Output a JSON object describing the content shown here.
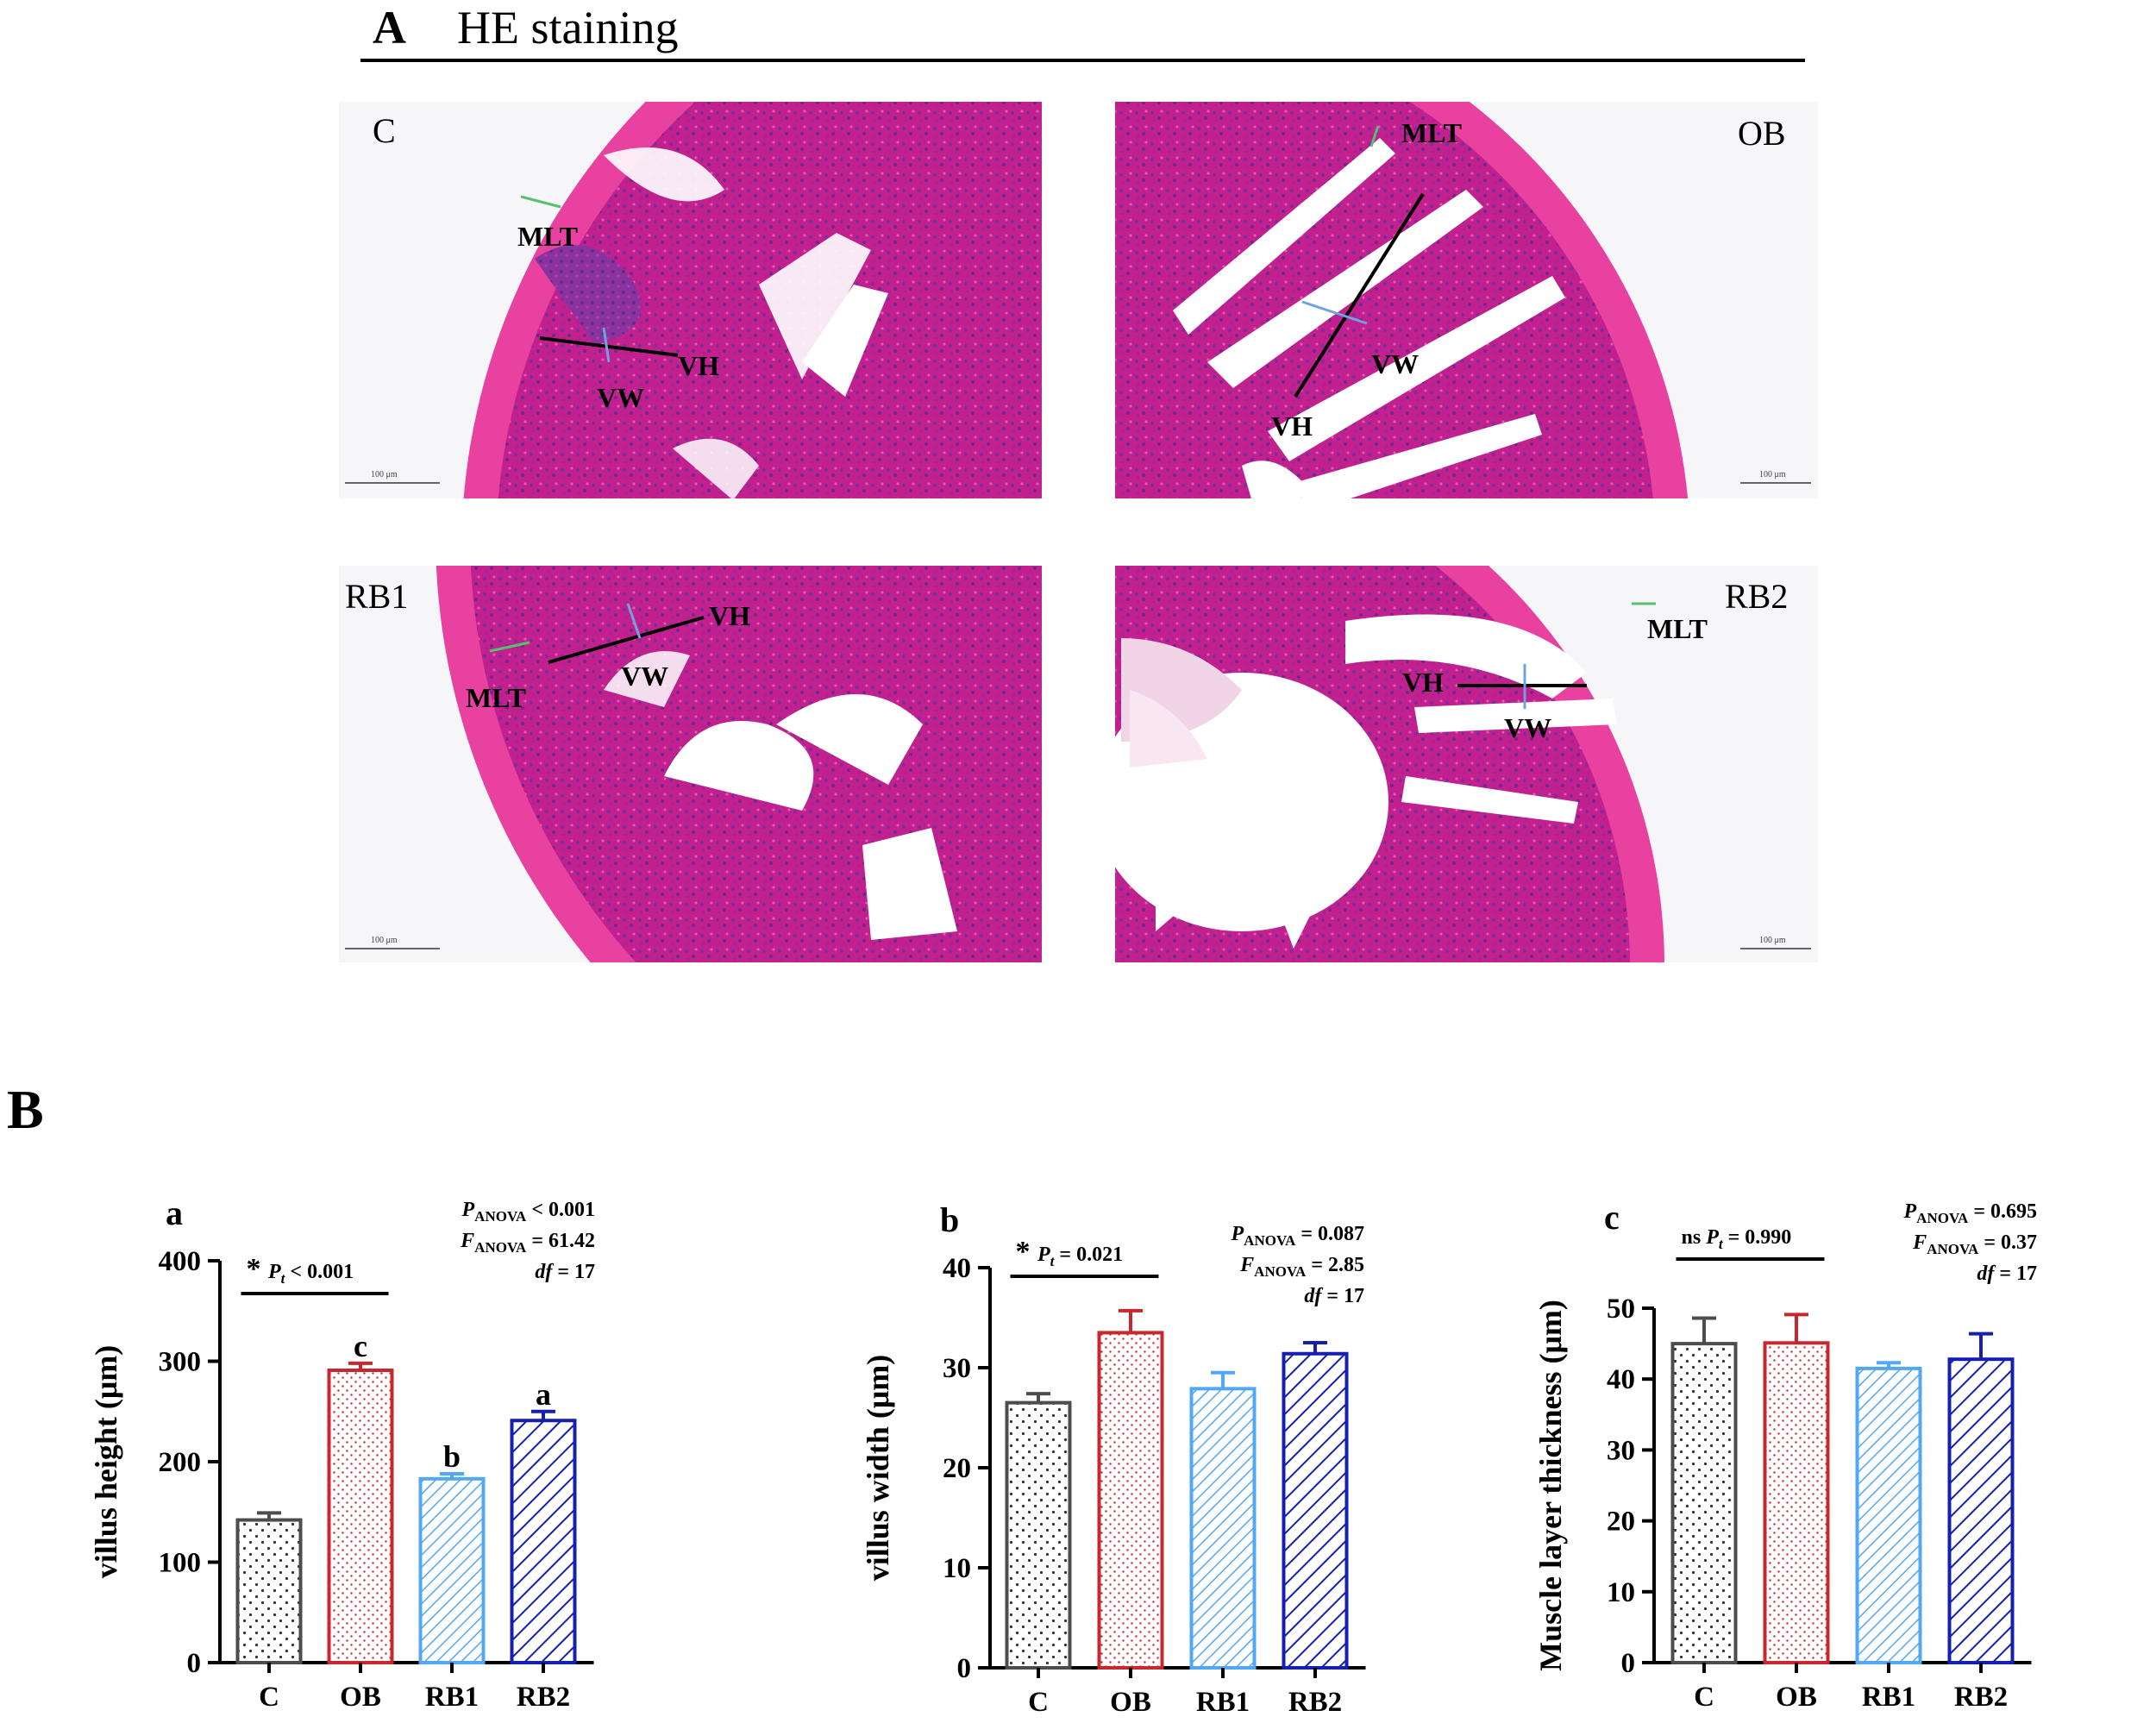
{
  "panel_a": {
    "letter": "A",
    "title": "HE staining",
    "images": [
      {
        "label": "C",
        "annotations": [
          "MLT",
          "VH",
          "VW"
        ],
        "scale": "100 μm"
      },
      {
        "label": "OB",
        "annotations": [
          "MLT",
          "VH",
          "VW"
        ],
        "scale": "100 μm"
      },
      {
        "label": "RB1",
        "annotations": [
          "MLT",
          "VH",
          "VW"
        ],
        "scale": "100 μm"
      },
      {
        "label": "RB2",
        "annotations": [
          "MLT",
          "VH",
          "VW"
        ],
        "scale": "100 μm"
      }
    ],
    "colors": {
      "tissue": "#c2208f",
      "muscle": "#e8419f",
      "crypt": "#7c2f9a",
      "lumen": "#ffffff"
    }
  },
  "panel_b": {
    "letter": "B"
  },
  "colors": {
    "C": "#4d4d4d",
    "OB": "#c8282d",
    "RB1": "#52a8f5",
    "RB2": "#1520b0"
  },
  "chart_data": [
    {
      "type": "bar",
      "sub_label": "a",
      "categories": [
        "C",
        "OB",
        "RB1",
        "RB2"
      ],
      "values": [
        142,
        291,
        183,
        241
      ],
      "errors": [
        7,
        7,
        5,
        9
      ],
      "letters": [
        "",
        "c",
        "b",
        "a"
      ],
      "patterns": [
        "dots",
        "dots-fine",
        "hatch-fine",
        "hatch"
      ],
      "ylabel": "villus height  (μm)",
      "yticks": [
        0,
        100,
        200,
        300,
        400
      ],
      "ylim": [
        0,
        400
      ],
      "sig": {
        "from": 0,
        "to": 1,
        "star": "*",
        "text": "P",
        "sub": "t",
        "suffix": " < 0.001"
      },
      "stats": [
        {
          "p": "P",
          "sub": "ANOVA",
          "rest": " < 0.001"
        },
        {
          "p": "F",
          "sub": "ANOVA",
          "rest": " = 61.42"
        },
        {
          "p": "df",
          "sub": "",
          "rest": " = 17"
        }
      ]
    },
    {
      "type": "bar",
      "sub_label": "b",
      "categories": [
        "C",
        "OB",
        "RB1",
        "RB2"
      ],
      "values": [
        26.5,
        33.5,
        27.9,
        31.4
      ],
      "errors": [
        0.9,
        2.2,
        1.6,
        1.1
      ],
      "letters": [
        "",
        "",
        "",
        ""
      ],
      "patterns": [
        "dots",
        "dots-fine",
        "hatch-fine",
        "hatch"
      ],
      "ylabel": "villus width (μm)",
      "yticks": [
        0,
        10,
        20,
        30,
        40
      ],
      "ylim": [
        0,
        40
      ],
      "sig": {
        "from": 0,
        "to": 1,
        "star": "*",
        "text": "P",
        "sub": "t",
        "suffix": " = 0.021"
      },
      "stats": [
        {
          "p": "P",
          "sub": "ANOVA",
          "rest": " = 0.087"
        },
        {
          "p": "F",
          "sub": "ANOVA",
          "rest": " = 2.85"
        },
        {
          "p": "df",
          "sub": "",
          "rest": " = 17"
        }
      ]
    },
    {
      "type": "bar",
      "sub_label": "c",
      "categories": [
        "C",
        "OB",
        "RB1",
        "RB2"
      ],
      "values": [
        45.0,
        45.1,
        41.5,
        42.8
      ],
      "errors": [
        3.6,
        4.0,
        0.8,
        3.6
      ],
      "letters": [
        "",
        "",
        "",
        ""
      ],
      "patterns": [
        "dots",
        "dots-fine",
        "hatch-fine",
        "hatch"
      ],
      "ylabel": "Muscle layer thickness (μm)",
      "yticks": [
        0,
        10,
        20,
        30,
        40,
        50
      ],
      "ylim": [
        0,
        50
      ],
      "sig": {
        "from": 0,
        "to": 1,
        "star": "ns",
        "text": "P",
        "sub": "t",
        "suffix": " = 0.990"
      },
      "stats": [
        {
          "p": "P",
          "sub": "ANOVA",
          "rest": " = 0.695"
        },
        {
          "p": "F",
          "sub": "ANOVA",
          "rest": " = 0.37"
        },
        {
          "p": "df",
          "sub": "",
          "rest": " = 17"
        }
      ]
    }
  ]
}
